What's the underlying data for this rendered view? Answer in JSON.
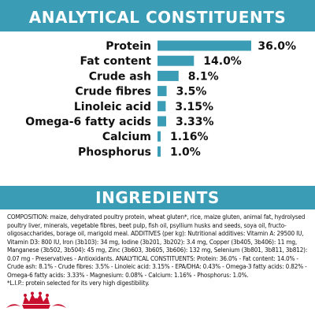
{
  "header": {
    "title": "ANALYTICAL CONSTITUENTS"
  },
  "ingredients": {
    "title": "INGREDIENTS",
    "composition": "COMPOSITION: maize, dehydrated poultry protein, wheat gluten*, rice, maize gluten, animal fat, hydrolysed poultry liver, minerals, vegetable fibres, beet pulp, fish oil, psyllium husks and seeds, soya oil, fructo-oligosaccharides, borage oil, marigold meal. ADDITIVES (per kg): Nutritional additives: Vitamin A: 29500 IU, Vitamin D3: 800 IU, Iron (3b103): 34 mg, Iodine (3b201, 3b202): 3.4 mg, Copper (3b405, 3b406): 11 mg, Manganese (3b502, 3b504): 45 mg, Zinc (3b603, 3b605, 3b606): 132 mg, Selenium (3b801, 3b811, 3b812): 0.07 mg - Preservatives - Antioxidants. ANALYTICAL CONSTITUENTS: Protein: 36.0% - Fat content: 14.0% - Crude ash: 8.1% - Crude fibres: 3.5% - Linoleic acid: 3.15% - EPA/DHA: 0.43% - Omega-3 fatty acids: 0.82% - Omega-6 fatty acids: 3.33% - Magnesium: 0.08% - Calcium: 1.16% - Phosphorus: 1.0%.",
    "footnote": "*L.I.P.: protein selected for its very high digestibility."
  },
  "chart_data": {
    "type": "bar",
    "orientation": "horizontal",
    "categories": [
      "Protein",
      "Fat content",
      "Crude ash",
      "Crude fibres",
      "Linoleic acid",
      "Omega-6 fatty acids",
      "Calcium",
      "Phosphorus"
    ],
    "values": [
      36.0,
      14.0,
      8.1,
      3.5,
      3.15,
      3.33,
      1.16,
      1.0
    ],
    "value_labels": [
      "36.0%",
      "14.0%",
      "8.1%",
      "3.5%",
      "3.15%",
      "3.33%",
      "1.16%",
      "1.0%"
    ],
    "title": "ANALYTICAL CONSTITUENTS",
    "xlabel": "",
    "ylabel": "",
    "unit": "%",
    "xlim": [
      0,
      36.0
    ],
    "grid": false,
    "bar_color": "#3b9db5"
  },
  "colors": {
    "accent": "#3b9db5",
    "logo": "#c8102e"
  },
  "logo": {
    "icon": "royal-canin-crown-icon"
  }
}
